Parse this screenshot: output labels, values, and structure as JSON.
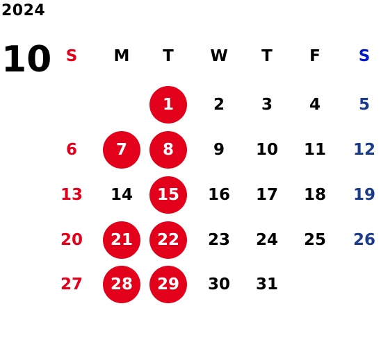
{
  "year": "2024",
  "month": "10",
  "colors": {
    "sunday": "#e3001b",
    "saturday": "#1a3a8a",
    "saturday_header": "#0018c8",
    "weekday": "#000000",
    "holiday_circle": "#e3001b",
    "circle_text": "#ffffff"
  },
  "weekdays": [
    "S",
    "M",
    "T",
    "W",
    "T",
    "F",
    "S"
  ],
  "weeks": [
    [
      "",
      "",
      "1",
      "2",
      "3",
      "4",
      "5"
    ],
    [
      "6",
      "7",
      "8",
      "9",
      "10",
      "11",
      "12"
    ],
    [
      "13",
      "14",
      "15",
      "16",
      "17",
      "18",
      "19"
    ],
    [
      "20",
      "21",
      "22",
      "23",
      "24",
      "25",
      "26"
    ],
    [
      "27",
      "28",
      "29",
      "30",
      "31",
      "",
      ""
    ]
  ],
  "highlighted_days": [
    "1",
    "7",
    "8",
    "15",
    "21",
    "22",
    "28",
    "29"
  ]
}
